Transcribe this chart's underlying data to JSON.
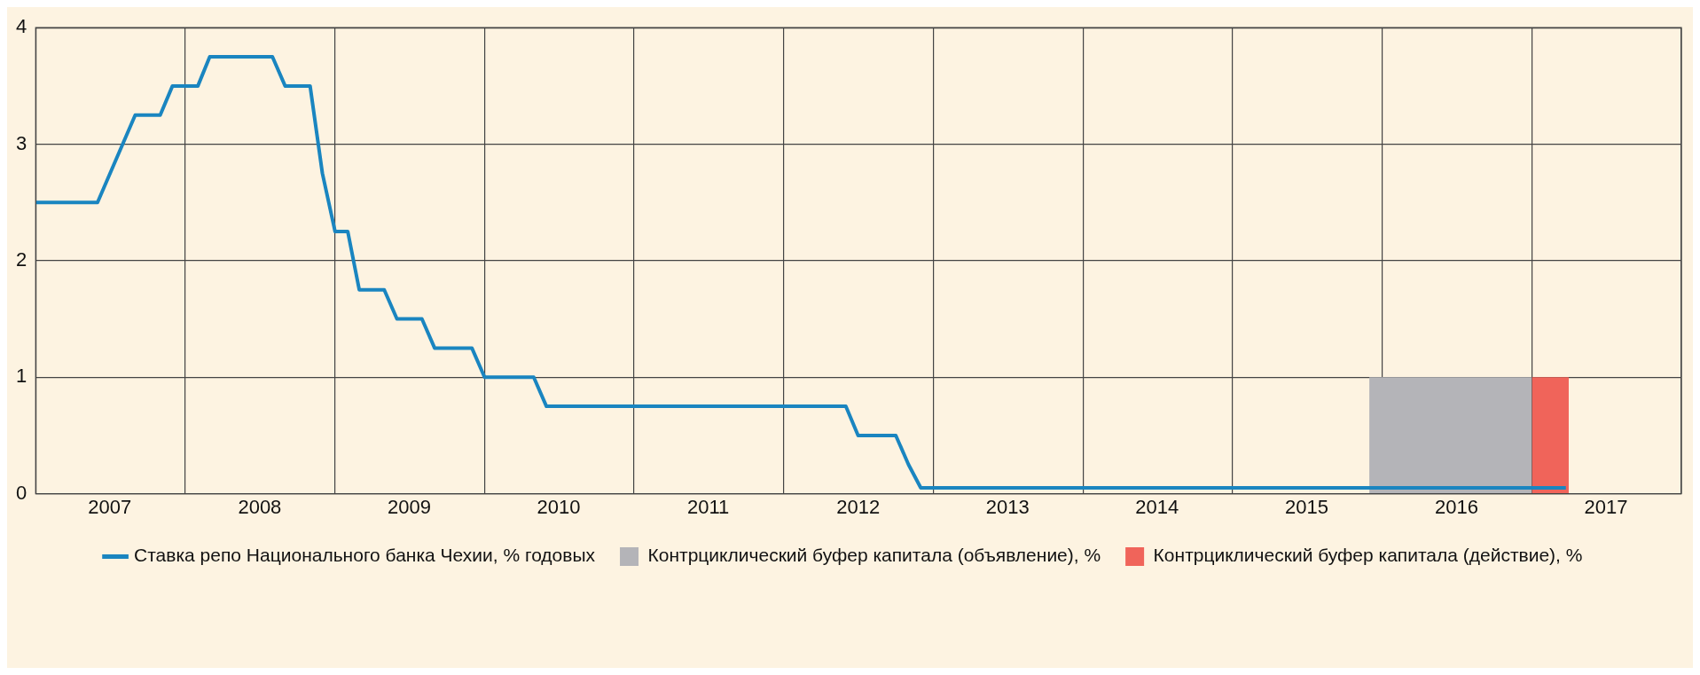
{
  "chart_data": {
    "type": "line",
    "xlim": [
      "2007-01",
      "2018-01"
    ],
    "ylim": [
      0,
      4
    ],
    "yticks": [
      0,
      1,
      2,
      3,
      4
    ],
    "xticks": [
      {
        "value": "2007-01",
        "label": null
      },
      {
        "value": "2007-07",
        "label": "2007"
      },
      {
        "value": "2008-01",
        "label": null
      },
      {
        "value": "2008-07",
        "label": "2008"
      },
      {
        "value": "2009-01",
        "label": null
      },
      {
        "value": "2009-07",
        "label": "2009"
      },
      {
        "value": "2010-01",
        "label": null
      },
      {
        "value": "2010-07",
        "label": "2010"
      },
      {
        "value": "2011-01",
        "label": null
      },
      {
        "value": "2011-07",
        "label": "2011"
      },
      {
        "value": "2012-01",
        "label": null
      },
      {
        "value": "2012-07",
        "label": "2012"
      },
      {
        "value": "2013-01",
        "label": null
      },
      {
        "value": "2013-07",
        "label": "2013"
      },
      {
        "value": "2014-01",
        "label": null
      },
      {
        "value": "2014-07",
        "label": "2014"
      },
      {
        "value": "2015-01",
        "label": null
      },
      {
        "value": "2015-07",
        "label": "2015"
      },
      {
        "value": "2016-01",
        "label": null
      },
      {
        "value": "2016-07",
        "label": "2016"
      },
      {
        "value": "2017-01",
        "label": null
      },
      {
        "value": "2017-07",
        "label": "2017"
      },
      {
        "value": "2018-01",
        "label": null
      }
    ],
    "grid": true,
    "legend": "bottom",
    "marker": "none",
    "line_style": "solid",
    "series": [
      {
        "name": "Контрциклический буфер капитала (объявление), %",
        "type": "area",
        "color": "#b4b4b8",
        "x": [
          "2015-12",
          "2017-01"
        ],
        "values": [
          1,
          1
        ]
      },
      {
        "name": "Контрциклический буфер капитала (действие), %",
        "type": "area",
        "color": "#f0645a",
        "x": [
          "2017-01",
          "2017-04"
        ],
        "values": [
          1,
          1
        ]
      },
      {
        "name": "Ставка репо Национального банка Чехии, % годовых",
        "type": "line",
        "color": "#1a85c0",
        "x": [
          "2007-01",
          "2007-06",
          "2007-09",
          "2007-11",
          "2007-12",
          "2008-02",
          "2008-03",
          "2008-08",
          "2008-09",
          "2008-11",
          "2008-12",
          "2009-01",
          "2009-02",
          "2009-03",
          "2009-05",
          "2009-06",
          "2009-08",
          "2009-09",
          "2009-12",
          "2010-01",
          "2010-05",
          "2010-06",
          "2012-06",
          "2012-07",
          "2012-10",
          "2012-11",
          "2012-12",
          "2017-03-25"
        ],
        "values": [
          2.5,
          2.5,
          3.25,
          3.25,
          3.5,
          3.5,
          3.75,
          3.75,
          3.5,
          3.5,
          2.75,
          2.25,
          2.25,
          1.75,
          1.75,
          1.5,
          1.5,
          1.25,
          1.25,
          1,
          1,
          0.75,
          0.75,
          0.5,
          0.5,
          0.25,
          0.05,
          0.05
        ]
      }
    ]
  }
}
